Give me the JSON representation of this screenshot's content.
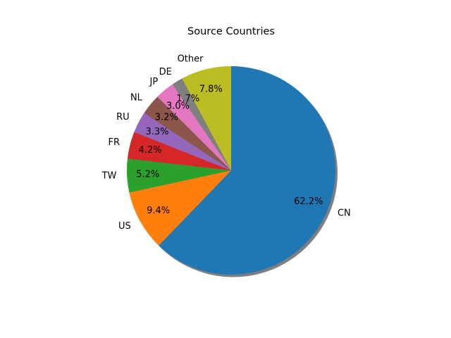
{
  "chart_data": {
    "type": "pie",
    "title": "Source Countries",
    "slices": [
      {
        "label": "CN",
        "value": 62.2,
        "display": "62.2%",
        "color": "#1f77b4"
      },
      {
        "label": "US",
        "value": 9.4,
        "display": "9.4%",
        "color": "#ff7f0e"
      },
      {
        "label": "TW",
        "value": 5.2,
        "display": "5.2%",
        "color": "#2ca02c"
      },
      {
        "label": "FR",
        "value": 4.2,
        "display": "4.2%",
        "color": "#d62728"
      },
      {
        "label": "RU",
        "value": 3.3,
        "display": "3.3%",
        "color": "#9467bd"
      },
      {
        "label": "NL",
        "value": 3.2,
        "display": "3.2%",
        "color": "#8c564b"
      },
      {
        "label": "JP",
        "value": 3.0,
        "display": "3.0%",
        "color": "#e377c2"
      },
      {
        "label": "DE",
        "value": 1.7,
        "display": "1.7%",
        "color": "#7f7f7f"
      },
      {
        "label": "Other",
        "value": 7.8,
        "display": "7.8%",
        "color": "#bcbd22"
      }
    ],
    "start_angle_deg": 90,
    "direction": "clockwise",
    "shadow": true,
    "legend": "none"
  }
}
